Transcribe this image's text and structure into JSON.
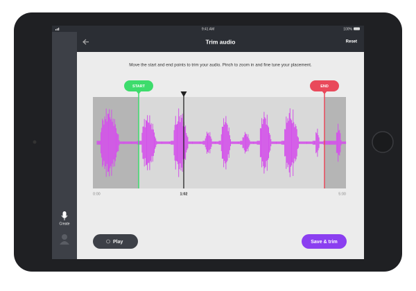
{
  "status_bar": {
    "time": "9:41 AM",
    "battery": "100%"
  },
  "header": {
    "title": "Trim audio",
    "reset": "Reset"
  },
  "instructions": "Move the start and end points to trim your audio. Pinch to zoom in and fine tune your placement.",
  "trim": {
    "start_label": "START",
    "end_label": "END",
    "times": [
      "0:00",
      "1:02",
      "5:00"
    ]
  },
  "sidebar": {
    "create": "Create"
  },
  "buttons": {
    "play": "Play",
    "save": "Save & trim"
  }
}
